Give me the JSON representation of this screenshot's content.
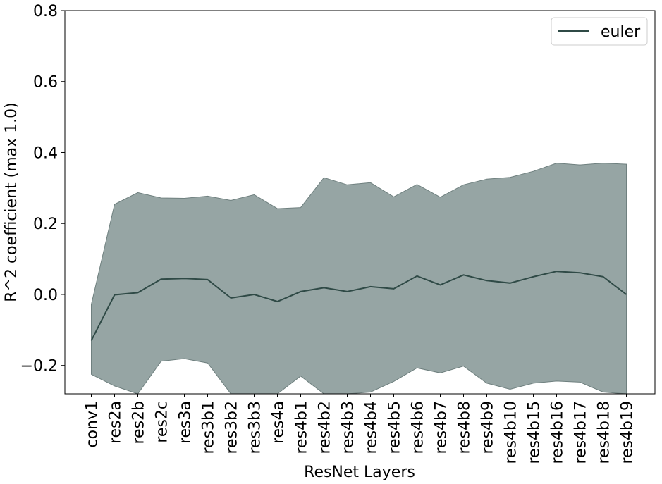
{
  "chart_data": {
    "type": "line",
    "xlabel": "ResNet Layers",
    "ylabel": "R^2 coefficient (max 1.0)",
    "ylim": [
      -0.28,
      0.8
    ],
    "yticks": [
      -0.2,
      0.0,
      0.2,
      0.4,
      0.6,
      0.8
    ],
    "ytick_labels": [
      "−0.2",
      "0.0",
      "0.2",
      "0.4",
      "0.6",
      "0.8"
    ],
    "grid": false,
    "legend": {
      "position": "top-right",
      "entries": [
        "euler"
      ]
    },
    "categories": [
      "conv1",
      "res2a",
      "res2b",
      "res2c",
      "res3a",
      "res3b1",
      "res3b2",
      "res3b3",
      "res4a",
      "res4b1",
      "res4b2",
      "res4b3",
      "res4b4",
      "res4b5",
      "res4b6",
      "res4b7",
      "res4b8",
      "res4b9",
      "res4b10",
      "res4b15",
      "res4b16",
      "res4b17",
      "res4b18",
      "res4b19"
    ],
    "series": [
      {
        "name": "euler",
        "color": "#2f4a46",
        "band_color": "#96a5a4",
        "values": [
          -0.13,
          -0.001,
          0.005,
          0.043,
          0.045,
          0.042,
          -0.01,
          0.0,
          -0.02,
          0.008,
          0.019,
          0.008,
          0.022,
          0.016,
          0.052,
          0.027,
          0.055,
          0.039,
          0.032,
          0.05,
          0.065,
          0.061,
          0.05,
          0.0
        ],
        "upper": [
          -0.028,
          0.254,
          0.287,
          0.272,
          0.271,
          0.277,
          0.265,
          0.281,
          0.242,
          0.245,
          0.329,
          0.309,
          0.315,
          0.275,
          0.31,
          0.274,
          0.309,
          0.325,
          0.33,
          0.347,
          0.37,
          0.365,
          0.37,
          0.367
        ],
        "lower": [
          -0.225,
          -0.258,
          -0.28,
          -0.188,
          -0.181,
          -0.193,
          -0.29,
          -0.29,
          -0.28,
          -0.23,
          -0.29,
          -0.29,
          -0.275,
          -0.245,
          -0.207,
          -0.221,
          -0.202,
          -0.25,
          -0.267,
          -0.25,
          -0.244,
          -0.247,
          -0.275,
          -0.29
        ]
      }
    ]
  }
}
